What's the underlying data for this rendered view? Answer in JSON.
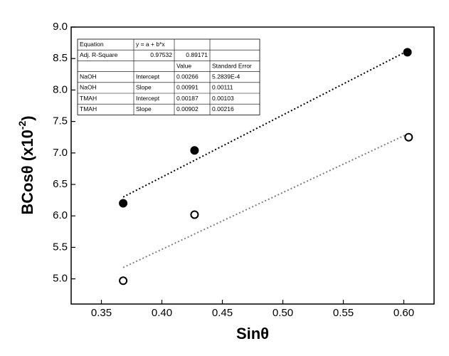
{
  "chart_data": {
    "type": "scatter",
    "xlabel": "Sinθ",
    "ylabel": {
      "text": "BCosθ (x10",
      "sup": "-2",
      "end": ")"
    },
    "xlim": [
      0.325,
      0.625
    ],
    "ylim": [
      4.6,
      9.0
    ],
    "xticks": [
      0.35,
      {
        "value": 0.4,
        "label": "0.40"
      },
      0.45,
      {
        "value": 0.5,
        "label": "0.50"
      },
      0.55,
      {
        "value": 0.6,
        "label": "0.60"
      }
    ],
    "yticks": [
      {
        "value": 5,
        "label": "5.0"
      },
      5.5,
      {
        "value": 6,
        "label": "6.0"
      },
      6.5,
      {
        "value": 7,
        "label": "7.0"
      },
      7.5,
      {
        "value": 8,
        "label": "8.0"
      },
      8.5,
      {
        "value": 9,
        "label": "9.0"
      }
    ],
    "series": [
      {
        "color": "#000000",
        "marker": "filled",
        "x": [
          0.368,
          0.427,
          0.603
        ],
        "values": [
          6.2,
          7.04,
          8.6
        ]
      },
      {
        "color": "#000000",
        "marker": "open",
        "x": [
          0.368,
          0.427,
          0.604
        ],
        "values": [
          4.97,
          6.02,
          7.25
        ]
      }
    ],
    "fits": [
      {
        "color": "#000000",
        "x": [
          0.368,
          0.603
        ],
        "values": [
          6.3,
          8.62
        ]
      },
      {
        "color": "#808080",
        "x": [
          0.368,
          0.603
        ],
        "values": [
          5.18,
          7.3
        ]
      }
    ],
    "table": {
      "rows": [
        [
          "Equation",
          "y = a + b*x",
          null,
          null
        ],
        [
          "Adj. R-Square",
          "0.97532",
          "0.89171",
          null
        ],
        [
          null,
          null,
          "Value",
          "Standard Error"
        ],
        [
          "NaOH",
          "Intercept",
          "0.00266",
          "5.2839E-4"
        ],
        [
          "NaOH",
          "Slope",
          "0.00991",
          "0.00111"
        ],
        [
          "TMAH",
          "Intercept",
          "0.00187",
          "0.00103"
        ],
        [
          "TMAH",
          "Slope",
          "0.00902",
          "0.00216"
        ]
      ]
    }
  }
}
